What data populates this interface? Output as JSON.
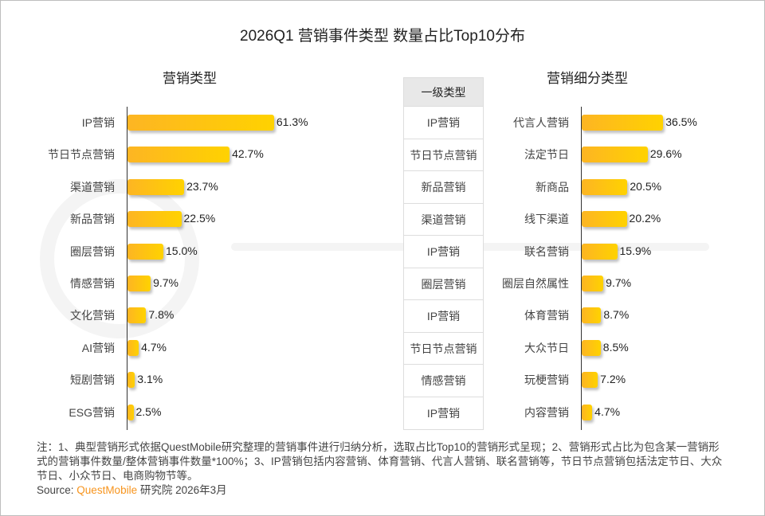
{
  "chart_data": [
    {
      "type": "bar",
      "orientation": "horizontal",
      "title": "营销类型",
      "categories": [
        "IP营销",
        "节日节点营销",
        "渠道营销",
        "新品营销",
        "圈层营销",
        "情感营销",
        "文化营销",
        "AI营销",
        "短剧营销",
        "ESG营销"
      ],
      "values": [
        61.3,
        42.7,
        23.7,
        22.5,
        15.0,
        9.7,
        7.8,
        4.7,
        3.1,
        2.5
      ],
      "unit": "%"
    },
    {
      "type": "table",
      "title": "一级类型",
      "rows": [
        "IP营销",
        "节日节点营销",
        "新品营销",
        "渠道营销",
        "IP营销",
        "圈层营销",
        "IP营销",
        "节日节点营销",
        "情感营销",
        "IP营销"
      ]
    },
    {
      "type": "bar",
      "orientation": "horizontal",
      "title": "营销细分类型",
      "categories": [
        "代言人营销",
        "法定节日",
        "新商品",
        "线下渠道",
        "联名营销",
        "圈层自然属性",
        "体育营销",
        "大众节日",
        "玩梗营销",
        "内容营销"
      ],
      "values": [
        36.5,
        29.6,
        20.5,
        20.2,
        15.9,
        9.7,
        8.7,
        8.5,
        7.2,
        4.7
      ],
      "unit": "%"
    }
  ],
  "title": "2026Q1 营销事件类型 数量占比Top10分布",
  "watermark": "QUESTMOBILE",
  "bar_colors": [
    "#fdb523",
    "#ffd200"
  ],
  "note": "注：1、典型营销形式依据QuestMobile研究整理的营销事件进行归纳分析，选取占比Top10的营销形式呈现；2、营销形式占比为包含某一营销形式的营销事件数量/整体营销事件数量*100%；3、IP营销包括内容营销、体育营销、代言人营销、联名营销等，节日节点营销包括法定节日、大众节日、小众节日、电商购物节等。",
  "source": {
    "label": "Source:",
    "brand": "QuestMobile",
    "rest": "研究院 2026年3月"
  }
}
